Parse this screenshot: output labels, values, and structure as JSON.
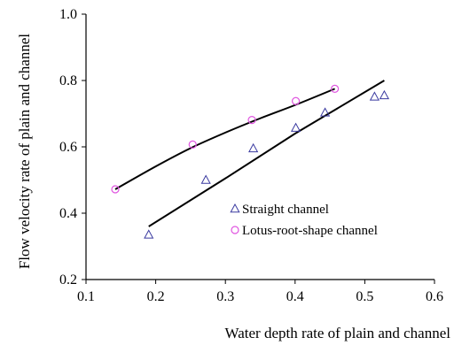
{
  "chart_data": {
    "type": "scatter",
    "xlabel": "Water depth rate of plain and channel",
    "ylabel": "Flow velocity rate of plain and channel",
    "xlim": [
      0.1,
      0.6
    ],
    "ylim": [
      0.2,
      1.0
    ],
    "xticks": [
      "0.1",
      "0.2",
      "0.3",
      "0.4",
      "0.5",
      "0.6"
    ],
    "yticks": [
      "0.2",
      "0.4",
      "0.6",
      "0.8",
      "1.0"
    ],
    "grid": false,
    "legend_position": "lower-right",
    "series": [
      {
        "name": "Straight channel",
        "marker": "triangle",
        "color": "#3a3aa0",
        "points": [
          {
            "x": 0.19,
            "y": 0.335
          },
          {
            "x": 0.272,
            "y": 0.5
          },
          {
            "x": 0.34,
            "y": 0.595
          },
          {
            "x": 0.401,
            "y": 0.657
          },
          {
            "x": 0.443,
            "y": 0.703
          },
          {
            "x": 0.514,
            "y": 0.751
          },
          {
            "x": 0.528,
            "y": 0.755
          }
        ],
        "trendline": [
          {
            "x": 0.19,
            "y": 0.36
          },
          {
            "x": 0.3,
            "y": 0.505
          },
          {
            "x": 0.4,
            "y": 0.64
          },
          {
            "x": 0.528,
            "y": 0.8
          }
        ]
      },
      {
        "name": "Lotus-root-shape channel",
        "marker": "circle",
        "color": "#e055e0",
        "points": [
          {
            "x": 0.142,
            "y": 0.472
          },
          {
            "x": 0.253,
            "y": 0.607
          },
          {
            "x": 0.338,
            "y": 0.681
          },
          {
            "x": 0.401,
            "y": 0.738
          },
          {
            "x": 0.457,
            "y": 0.775
          }
        ],
        "trendline": [
          {
            "x": 0.142,
            "y": 0.472
          },
          {
            "x": 0.2,
            "y": 0.541
          },
          {
            "x": 0.25,
            "y": 0.596
          },
          {
            "x": 0.3,
            "y": 0.643
          },
          {
            "x": 0.35,
            "y": 0.686
          },
          {
            "x": 0.4,
            "y": 0.726
          },
          {
            "x": 0.457,
            "y": 0.775
          }
        ]
      }
    ]
  }
}
